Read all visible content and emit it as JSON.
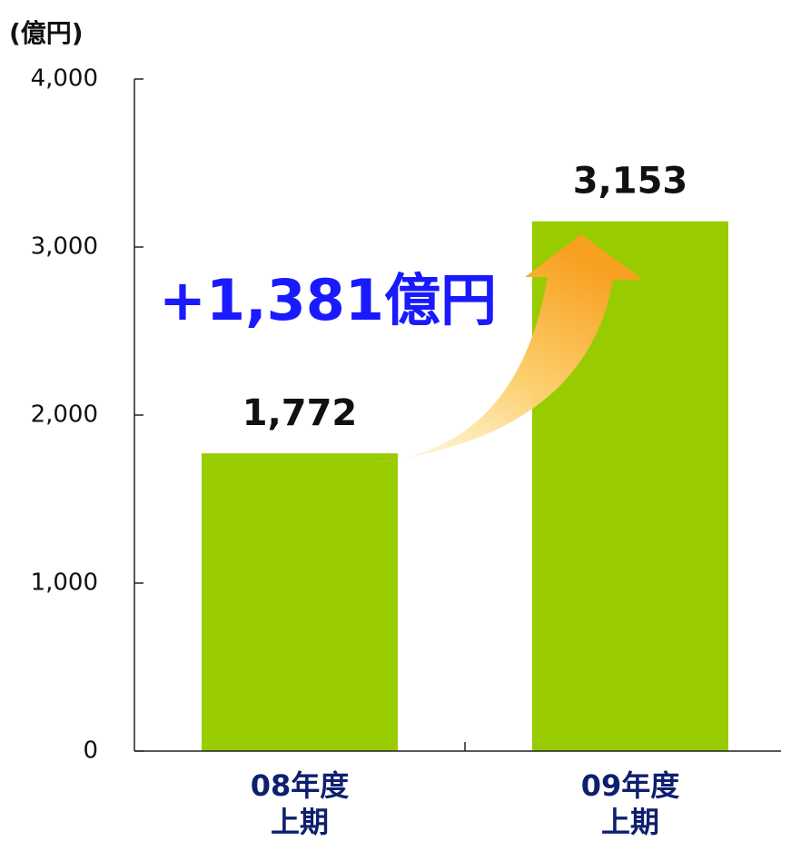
{
  "chart_data": {
    "type": "bar",
    "y_axis_label": "(億円)",
    "categories": [
      "08年度\n上期",
      "09年度\n上期"
    ],
    "values": [
      1772,
      3153
    ],
    "value_labels": [
      "1,772",
      "3,153"
    ],
    "color": "#99cc00",
    "annotation": "+1,381億円",
    "ylim": [
      0,
      4000
    ],
    "yticks": [
      0,
      {
        "value": 1000,
        "label": "1,000"
      },
      {
        "value": 2000,
        "label": "2,000"
      },
      {
        "value": 3000,
        "label": "3,000"
      },
      {
        "value": 4000,
        "label": "4,000"
      }
    ]
  }
}
